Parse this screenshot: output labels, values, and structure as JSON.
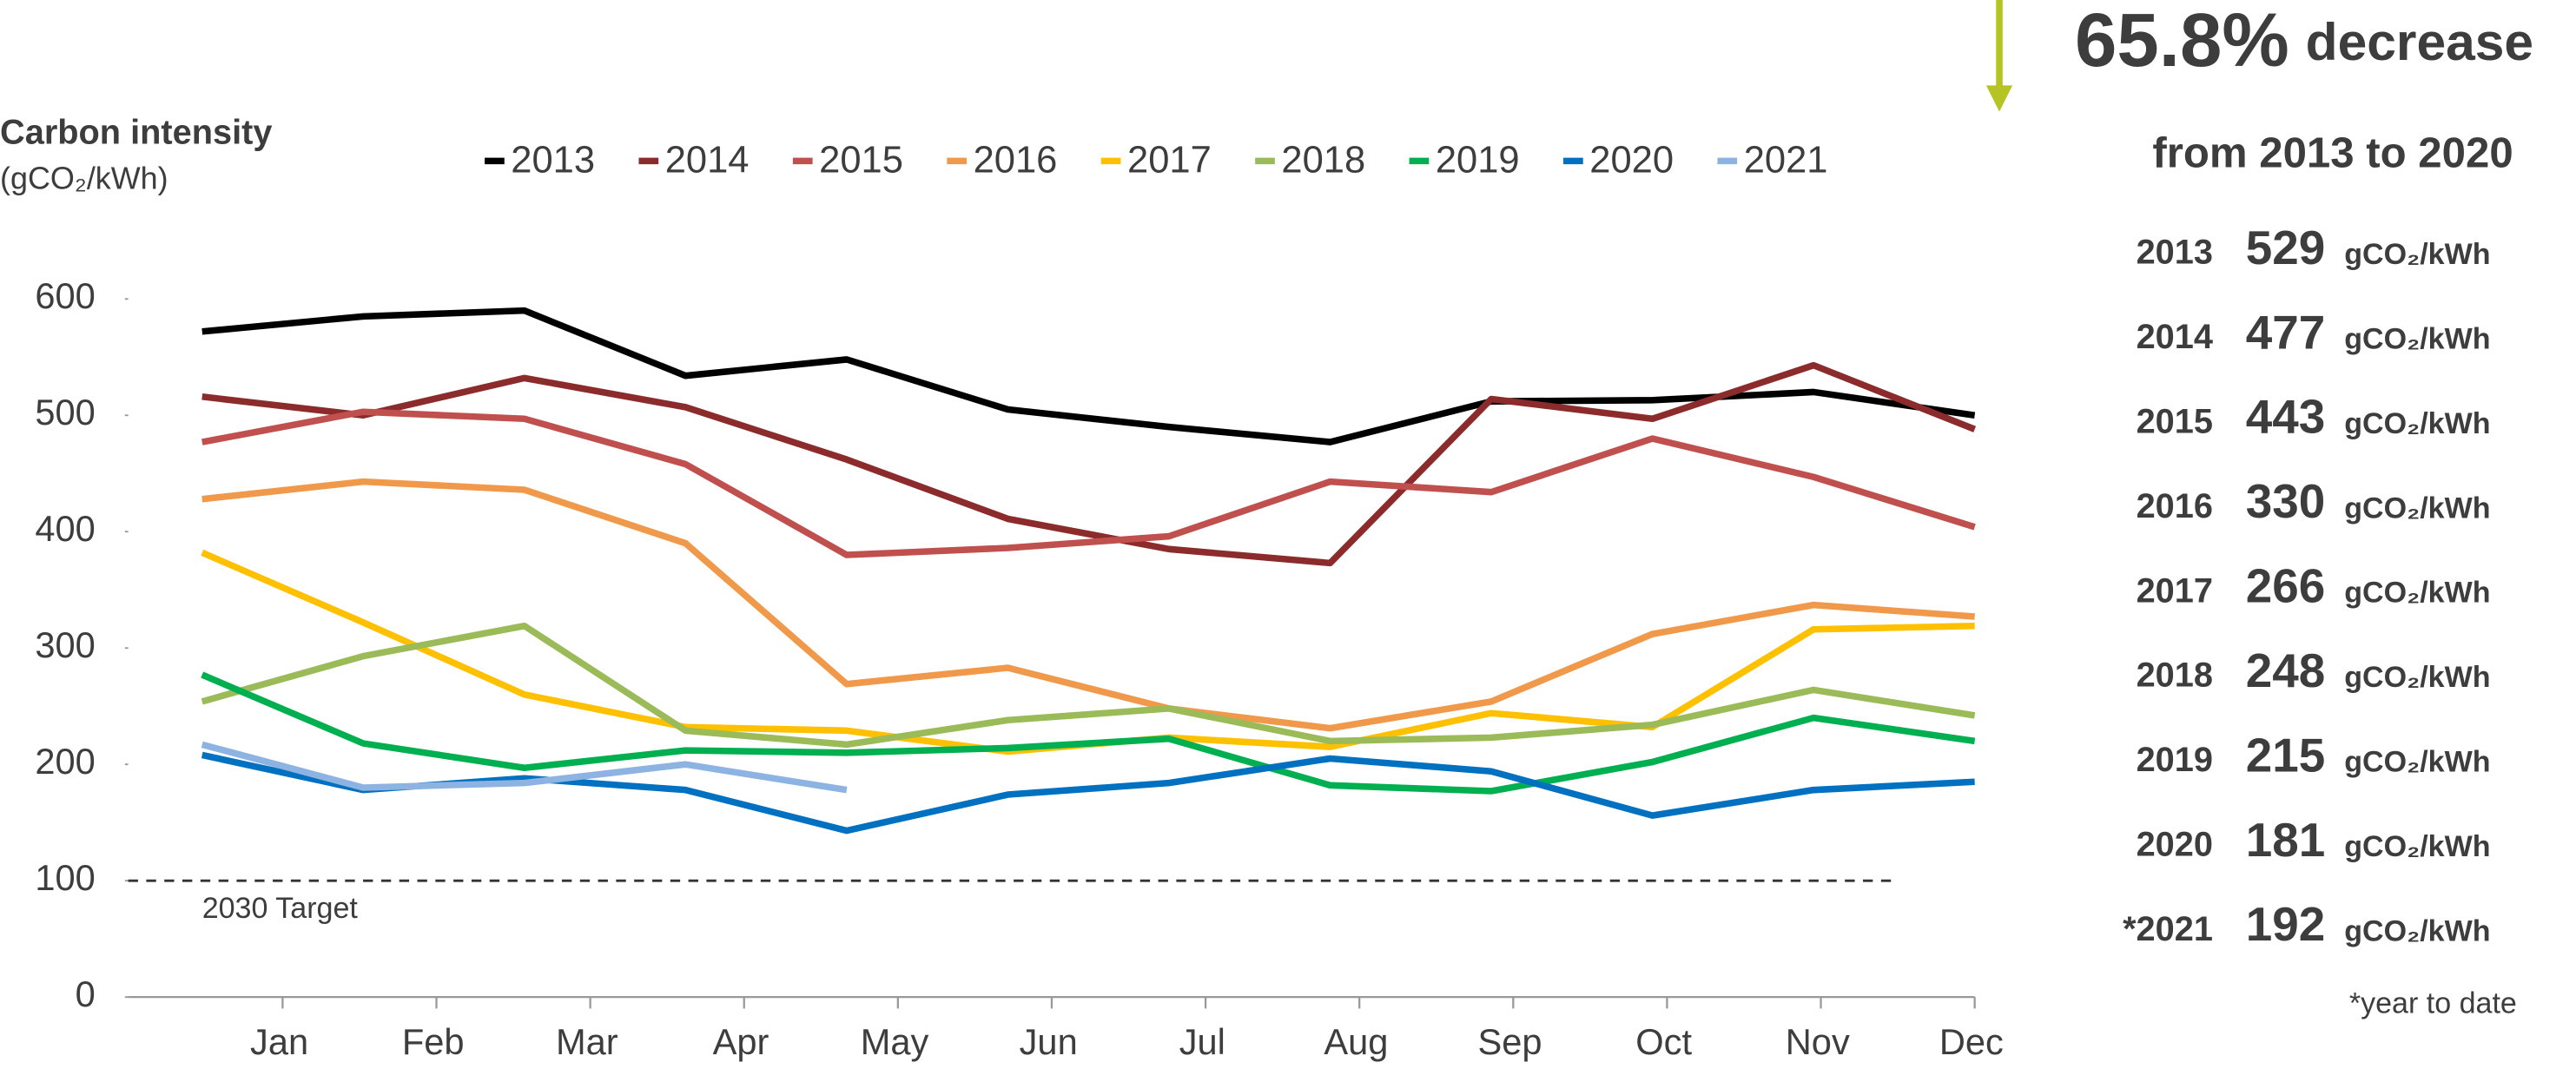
{
  "chart_data": {
    "type": "line",
    "title": "Carbon intensity",
    "y_axis_label": "(gCO₂/kWh)",
    "categories": [
      "Jan",
      "Feb",
      "Mar",
      "Apr",
      "May",
      "Jun",
      "Jul",
      "Aug",
      "Sep",
      "Oct",
      "Nov",
      "Dec"
    ],
    "series": [
      {
        "name": "2013",
        "color": "#000000",
        "values": [
          572,
          585,
          590,
          534,
          548,
          505,
          490,
          477,
          512,
          513,
          520,
          500
        ]
      },
      {
        "name": "2014",
        "color": "#8c2b2b",
        "values": [
          516,
          500,
          532,
          507,
          462,
          411,
          385,
          373,
          514,
          497,
          543,
          488
        ]
      },
      {
        "name": "2015",
        "color": "#c0504d",
        "values": [
          477,
          503,
          497,
          458,
          380,
          386,
          396,
          443,
          434,
          480,
          447,
          404
        ]
      },
      {
        "name": "2016",
        "color": "#f0994a",
        "values": [
          428,
          443,
          436,
          390,
          269,
          283,
          248,
          231,
          254,
          312,
          337,
          327
        ]
      },
      {
        "name": "2017",
        "color": "#ffc000",
        "values": [
          382,
          322,
          260,
          232,
          229,
          211,
          223,
          215,
          244,
          232,
          316,
          319
        ]
      },
      {
        "name": "2018",
        "color": "#9bbb59",
        "values": [
          254,
          293,
          319,
          229,
          217,
          238,
          248,
          220,
          223,
          234,
          264,
          242
        ]
      },
      {
        "name": "2019",
        "color": "#00b050",
        "values": [
          277,
          218,
          197,
          212,
          210,
          214,
          222,
          182,
          177,
          202,
          240,
          220
        ]
      },
      {
        "name": "2020",
        "color": "#0070c0",
        "values": [
          208,
          178,
          188,
          178,
          143,
          174,
          184,
          205,
          194,
          156,
          178,
          185
        ]
      },
      {
        "name": "2021",
        "color": "#8db3e2",
        "values": [
          217,
          180,
          184,
          200,
          178,
          null,
          null,
          null,
          null,
          null,
          null,
          null
        ]
      }
    ],
    "ylim": [
      0,
      600
    ],
    "yticks": [
      0,
      100,
      200,
      300,
      400,
      500,
      600
    ],
    "grid": false,
    "target": {
      "value": 100,
      "label": "2030 Target"
    }
  },
  "summary": {
    "headline_value": "65.8%",
    "headline_text": "decrease",
    "subtitle": "from 2013 to 2020",
    "unit": "gCO₂/kWh",
    "rows": [
      {
        "year": "2013",
        "value": 529
      },
      {
        "year": "2014",
        "value": 477
      },
      {
        "year": "2015",
        "value": 443
      },
      {
        "year": "2016",
        "value": 330
      },
      {
        "year": "2017",
        "value": 266
      },
      {
        "year": "2018",
        "value": 248
      },
      {
        "year": "2019",
        "value": 215
      },
      {
        "year": "2020",
        "value": 181
      },
      {
        "year": "*2021",
        "value": 192
      }
    ],
    "footnote": "*year to date"
  }
}
